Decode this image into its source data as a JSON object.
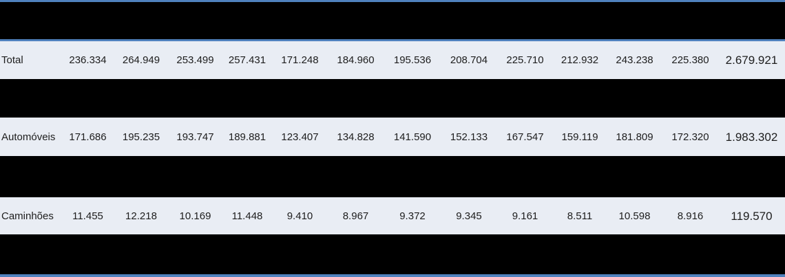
{
  "chart_data": {
    "type": "table",
    "title": "",
    "header": {
      "redacted": true,
      "columns_count": 14
    },
    "rows": [
      {
        "label": "Total",
        "values": [
          "236.334",
          "264.949",
          "253.499",
          "257.431",
          "171.248",
          "184.960",
          "195.536",
          "208.704",
          "225.710",
          "212.932",
          "243.238",
          "225.380"
        ],
        "annual_total": "2.679.921"
      },
      {
        "label": "Automóveis",
        "values": [
          "171.686",
          "195.235",
          "193.747",
          "189.881",
          "123.407",
          "134.828",
          "141.590",
          "152.133",
          "167.547",
          "159.119",
          "181.809",
          "172.320"
        ],
        "annual_total": "1.983.302"
      },
      {
        "label": "Caminhões",
        "values": [
          "11.455",
          "12.218",
          "10.169",
          "11.448",
          "9.410",
          "8.967",
          "9.372",
          "9.345",
          "9.161",
          "8.511",
          "10.598",
          "8.916"
        ],
        "annual_total": "119.570"
      }
    ],
    "layout": {
      "redacted_bands": "black bars cover the header row and every alternate data row",
      "grid": false,
      "accent_rule_positions": [
        "top",
        "below-header",
        "bottom"
      ]
    }
  },
  "colors": {
    "accent_blue": "#4F81BD",
    "row_background": "#E9EDF4",
    "redacted_band": "#000000",
    "text": "#1D1D1D"
  }
}
